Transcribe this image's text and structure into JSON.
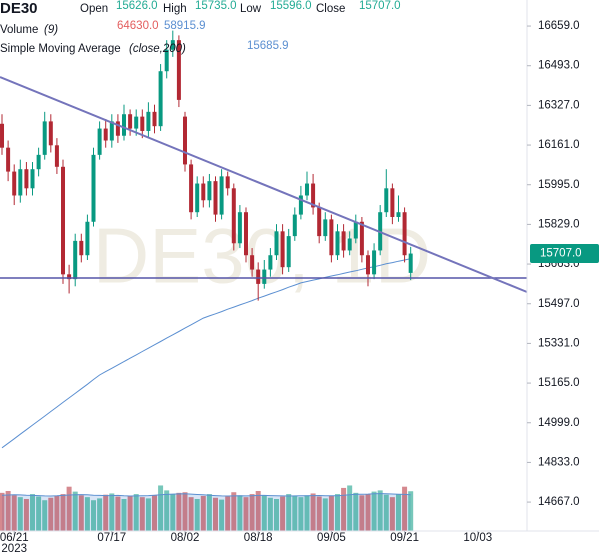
{
  "header": {
    "symbol": "DE30",
    "open_label": "Open",
    "open": "15626.0",
    "high_label": "High",
    "high": "15735.0",
    "low_label": "Low",
    "low": "15596.0",
    "close_label": "Close",
    "close": "15707.0",
    "volume_label": "Volume",
    "volume_params": "(9)",
    "volume_value": "64630.0",
    "volume_ma_value": "58915.9",
    "sma_label": "Simple Moving Average",
    "sma_params": "(close,200)",
    "sma_value": "15685.9"
  },
  "price_tag": "15707.0",
  "chart_data": {
    "type": "candlestick",
    "watermark": "DE30, 1D",
    "year": "2023",
    "xlim": [
      -0.33,
      86.07
    ],
    "xticks": [
      {
        "value": 2,
        "label": "06/21"
      },
      {
        "value": 18,
        "label": "07/17"
      },
      {
        "value": 30,
        "label": "08/02"
      },
      {
        "value": 42,
        "label": "08/18"
      },
      {
        "value": 54,
        "label": "09/05"
      },
      {
        "value": 66,
        "label": "09/21"
      },
      {
        "value": 78,
        "label": "10/03"
      }
    ],
    "ylim": [
      14546,
      16768
    ],
    "yticks": [
      {
        "value": 14667,
        "label": "14667.0"
      },
      {
        "value": 14833,
        "label": "14833.0"
      },
      {
        "value": 14999,
        "label": "14999.0"
      },
      {
        "value": 15165,
        "label": "15165.0"
      },
      {
        "value": 15331,
        "label": "15331.0"
      },
      {
        "value": 15497,
        "label": "15497.0"
      },
      {
        "value": 15663,
        "label": "15663.0"
      },
      {
        "value": 15829,
        "label": "15829.0"
      },
      {
        "value": 15995,
        "label": "15995.0"
      },
      {
        "value": 16161,
        "label": "16161.0"
      },
      {
        "value": 16327,
        "label": "16327.0"
      },
      {
        "value": 16493,
        "label": "16493.0"
      },
      {
        "value": 16659,
        "label": "16659.0"
      }
    ],
    "y2lim": [
      0,
      130000
    ],
    "up_color": "#089981",
    "down_color": "#b22833",
    "sma_color": "#5b8fd1",
    "volume_ma_color": "#5b8fd1",
    "open": [
      16250,
      16150,
      16050,
      15950,
      16060,
      15980,
      16060,
      16120,
      16260,
      16160,
      16070,
      15620,
      15600,
      15760,
      15700,
      15840,
      16120,
      16230,
      16180,
      16260,
      16200,
      16290,
      16230,
      16280,
      16220,
      16300,
      16240,
      16470,
      16560,
      16600,
      16280,
      16080,
      15880,
      16000,
      15930,
      16010,
      15870,
      16030,
      15980,
      15750,
      15880,
      15700,
      15640,
      15580,
      15640,
      15700,
      15800,
      15650,
      15780,
      15870,
      15950,
      16000,
      15900,
      15780,
      15850,
      15700,
      15800,
      15720,
      15770,
      15840,
      15700,
      15620,
      15720,
      15880,
      15980,
      15860,
      15880,
      15626
    ],
    "high": [
      16290,
      16180,
      16080,
      16100,
      16090,
      16090,
      16150,
      16300,
      16290,
      16190,
      16100,
      15660,
      15790,
      15790,
      15870,
      16150,
      16260,
      16270,
      16290,
      16290,
      16330,
      16310,
      16310,
      16310,
      16340,
      16330,
      16500,
      16600,
      16640,
      16620,
      16300,
      16100,
      16030,
      16030,
      16040,
      16030,
      16060,
      16050,
      16000,
      15910,
      15900,
      15730,
      15670,
      15680,
      15730,
      15830,
      15830,
      15810,
      15900,
      15990,
      16050,
      16040,
      15920,
      15880,
      15870,
      15830,
      15830,
      15800,
      15870,
      15860,
      15720,
      15750,
      15910,
      16060,
      16000,
      15950,
      15900,
      15735
    ],
    "low": [
      16120,
      16010,
      15910,
      15920,
      15950,
      15950,
      16030,
      16100,
      16130,
      16040,
      15580,
      15540,
      15570,
      15670,
      15680,
      15820,
      16100,
      16150,
      16150,
      16170,
      16180,
      16200,
      16200,
      16190,
      16190,
      16210,
      16220,
      16440,
      16530,
      16320,
      16050,
      15850,
      15860,
      15900,
      15900,
      15840,
      15850,
      15950,
      15720,
      15730,
      15670,
      15610,
      15510,
      15560,
      15610,
      15680,
      15620,
      15630,
      15760,
      15850,
      15930,
      15870,
      15750,
      15760,
      15670,
      15680,
      15690,
      15700,
      15750,
      15670,
      15570,
      15600,
      15700,
      15860,
      15830,
      15840,
      15670,
      15596
    ],
    "close": [
      16150,
      16050,
      15950,
      16060,
      15980,
      16060,
      16120,
      16260,
      16160,
      16070,
      15620,
      15600,
      15760,
      15700,
      15840,
      16120,
      16230,
      16180,
      16260,
      16200,
      16290,
      16230,
      16280,
      16220,
      16300,
      16240,
      16470,
      16560,
      16600,
      16350,
      16080,
      15880,
      16000,
      15930,
      16010,
      15870,
      16030,
      15980,
      15750,
      15880,
      15700,
      15640,
      15580,
      15640,
      15700,
      15800,
      15650,
      15780,
      15870,
      15950,
      16000,
      15900,
      15780,
      15850,
      15700,
      15800,
      15720,
      15770,
      15840,
      15700,
      15620,
      15720,
      15880,
      15980,
      15860,
      15880,
      15700,
      15707
    ],
    "sma": [
      14894,
      14913,
      14932,
      14951,
      14970,
      14989,
      15008,
      15027,
      15046,
      15065,
      15084,
      15103,
      15122,
      15141,
      15160,
      15180,
      15199,
      15213,
      15227,
      15241,
      15255,
      15269,
      15283,
      15297,
      15311,
      15325,
      15339,
      15353,
      15367,
      15381,
      15395,
      15409,
      15423,
      15437,
      15446,
      15455,
      15464,
      15474,
      15483,
      15492,
      15501,
      15510,
      15520,
      15529,
      15538,
      15547,
      15556,
      15566,
      15575,
      15584,
      15590,
      15596,
      15601,
      15607,
      15613,
      15618,
      15624,
      15630,
      15635,
      15641,
      15647,
      15652,
      15658,
      15664,
      15669,
      15675,
      15680,
      15685.9
    ],
    "volume": [
      62000,
      65000,
      58000,
      55000,
      52000,
      60000,
      56000,
      50000,
      54000,
      57000,
      60000,
      72000,
      64000,
      58000,
      55000,
      50000,
      53000,
      59000,
      61000,
      56000,
      52000,
      57000,
      60000,
      55000,
      53000,
      58000,
      74000,
      66000,
      60000,
      62000,
      63000,
      55000,
      52000,
      57000,
      60000,
      54000,
      51000,
      56000,
      63000,
      58000,
      55000,
      60000,
      65000,
      58000,
      54000,
      52000,
      56000,
      60000,
      57000,
      55000,
      58000,
      61000,
      56000,
      53000,
      57000,
      60000,
      70000,
      74000,
      62000,
      58000,
      60000,
      64000,
      66000,
      59000,
      55000,
      60000,
      72000,
      64630
    ],
    "volume_ma": [
      58000,
      58500,
      59000,
      58600,
      58000,
      57800,
      57500,
      57000,
      56800,
      57200,
      57800,
      58500,
      59000,
      59200,
      58800,
      58200,
      57800,
      57500,
      57600,
      57800,
      57200,
      56900,
      57000,
      57300,
      57600,
      58200,
      59000,
      59500,
      60000,
      60300,
      60500,
      60000,
      59300,
      58800,
      58200,
      57600,
      57000,
      56800,
      57000,
      57200,
      57000,
      57300,
      57800,
      57900,
      57600,
      57200,
      57000,
      56900,
      57100,
      57200,
      57300,
      57500,
      57700,
      57400,
      57200,
      57400,
      58000,
      59000,
      59600,
      59800,
      60000,
      60400,
      60800,
      60600,
      60200,
      59800,
      59400,
      58915.9
    ]
  }
}
